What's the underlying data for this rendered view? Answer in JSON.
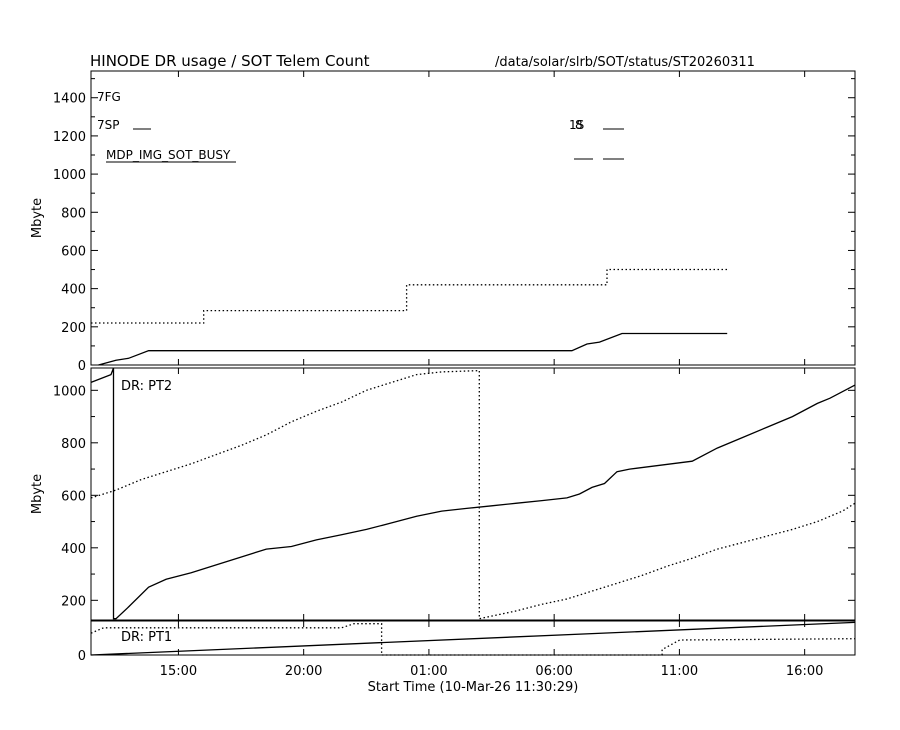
{
  "header": {
    "title": "HINODE DR usage / SOT Telem Count",
    "path": "/data/solar/slrb/SOT/status/ST20260311"
  },
  "chart_data": [
    {
      "type": "line",
      "panel": "top",
      "ylabel": "Mbyte",
      "ylim": [
        0,
        1540
      ],
      "yticks": [
        0,
        200,
        400,
        600,
        800,
        1000,
        1200,
        1400
      ],
      "xlim": [
        0,
        30.5
      ],
      "x_units": "hours since 10-Mar-26 11:30:29",
      "annotations": [
        "7FG",
        "7SP",
        "MDP_IMG_SOT_BUSY",
        "1S",
        "8"
      ],
      "series": [
        {
          "style": "dotted",
          "points": [
            [
              0,
              220
            ],
            [
              4.5,
              220
            ],
            [
              4.5,
              285
            ],
            [
              12.6,
              285
            ],
            [
              12.6,
              420
            ],
            [
              20.6,
              420
            ],
            [
              20.6,
              500
            ],
            [
              25.4,
              500
            ]
          ]
        },
        {
          "style": "solid",
          "points": [
            [
              0.3,
              0
            ],
            [
              1,
              25
            ],
            [
              1.5,
              35
            ],
            [
              2.3,
              75
            ],
            [
              19.2,
              75
            ],
            [
              19.8,
              110
            ],
            [
              20.3,
              120
            ],
            [
              21.2,
              165
            ],
            [
              25.4,
              165
            ]
          ]
        }
      ]
    },
    {
      "type": "line",
      "panel": "middle",
      "label": "DR: PT2",
      "ylabel": "Mbyte",
      "ylim": [
        125,
        1085
      ],
      "yticks": [
        200,
        400,
        600,
        800,
        1000
      ],
      "xlim": [
        0,
        30.5
      ],
      "series": [
        {
          "style": "solid",
          "points": [
            [
              0,
              1030
            ],
            [
              0.8,
              1060
            ],
            [
              0.9,
              1085
            ],
            [
              0.9,
              130
            ],
            [
              1,
              130
            ],
            [
              1.5,
              175
            ],
            [
              2.3,
              250
            ],
            [
              3,
              280
            ],
            [
              4,
              305
            ],
            [
              5,
              335
            ],
            [
              6,
              365
            ],
            [
              7,
              395
            ],
            [
              8,
              405
            ],
            [
              9,
              430
            ],
            [
              10,
              450
            ],
            [
              11,
              470
            ],
            [
              12,
              495
            ],
            [
              13,
              520
            ],
            [
              14,
              540
            ],
            [
              15,
              550
            ],
            [
              16,
              560
            ],
            [
              17,
              570
            ],
            [
              18,
              580
            ],
            [
              19,
              590
            ],
            [
              19.5,
              605
            ],
            [
              20,
              630
            ],
            [
              20.5,
              645
            ],
            [
              21,
              690
            ],
            [
              21.5,
              700
            ],
            [
              24,
              730
            ],
            [
              25,
              780
            ],
            [
              26,
              820
            ],
            [
              27,
              860
            ],
            [
              28,
              900
            ],
            [
              29,
              950
            ],
            [
              29.5,
              970
            ],
            [
              30.5,
              1020
            ]
          ]
        },
        {
          "style": "dotted",
          "points": [
            [
              0,
              590
            ],
            [
              1,
              620
            ],
            [
              2,
              660
            ],
            [
              3,
              690
            ],
            [
              4,
              720
            ],
            [
              5,
              755
            ],
            [
              6,
              790
            ],
            [
              7,
              830
            ],
            [
              8,
              880
            ],
            [
              9,
              920
            ],
            [
              10,
              955
            ],
            [
              11,
              1000
            ],
            [
              12,
              1030
            ],
            [
              13,
              1060
            ],
            [
              14,
              1070
            ],
            [
              15.5,
              1075
            ],
            [
              15.5,
              130
            ],
            [
              17,
              160
            ],
            [
              18,
              185
            ],
            [
              19,
              205
            ],
            [
              20,
              235
            ],
            [
              21,
              265
            ],
            [
              22,
              295
            ],
            [
              23,
              330
            ],
            [
              24,
              360
            ],
            [
              25,
              395
            ],
            [
              26,
              420
            ],
            [
              27,
              445
            ],
            [
              28,
              470
            ],
            [
              29,
              500
            ],
            [
              30,
              540
            ],
            [
              30.5,
              570
            ]
          ]
        }
      ]
    },
    {
      "type": "line",
      "panel": "bottom",
      "label": "DR: PT1",
      "ylim": [
        0,
        125
      ],
      "yticks": [
        0
      ],
      "xlim": [
        0,
        30.5
      ],
      "xlabel": "Start Time (10-Mar-26 11:30:29)",
      "xtick_values": [
        3.49,
        8.49,
        13.49,
        18.49,
        23.49,
        28.49
      ],
      "xtick_labels": [
        "15:00",
        "20:00",
        "01:00",
        "06:00",
        "11:00",
        "16:00"
      ],
      "series": [
        {
          "style": "solid",
          "points": [
            [
              0,
              0
            ],
            [
              30.5,
              120
            ]
          ]
        },
        {
          "style": "dotted",
          "points": [
            [
              0,
              80
            ],
            [
              0.5,
              100
            ],
            [
              10,
              100
            ],
            [
              10.5,
              115
            ],
            [
              11.6,
              115
            ],
            [
              11.6,
              0
            ],
            [
              22.8,
              0
            ],
            [
              22.8,
              20
            ],
            [
              23.5,
              55
            ],
            [
              30.5,
              60
            ]
          ]
        }
      ]
    }
  ]
}
